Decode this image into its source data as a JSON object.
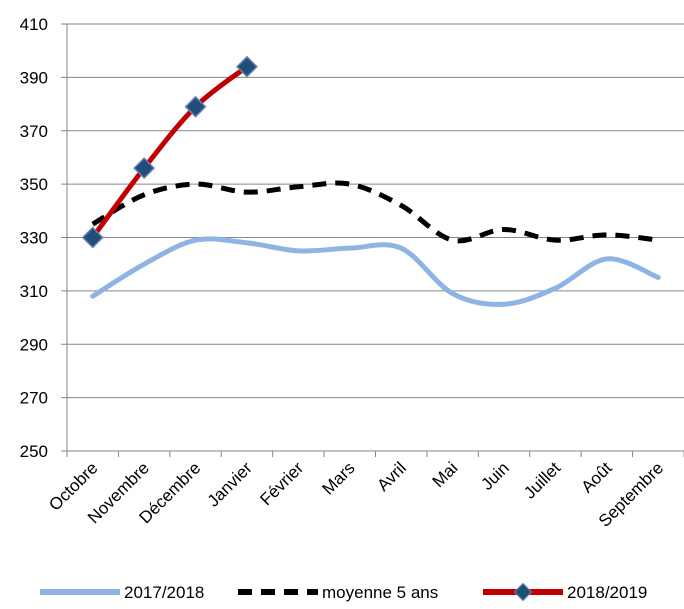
{
  "chart_data": {
    "type": "line",
    "title": "",
    "xlabel": "",
    "ylabel": "",
    "categories": [
      "Octobre",
      "Novembre",
      "Décembre",
      "Janvier",
      "Février",
      "Mars",
      "Avril",
      "Mai",
      "Juin",
      "Juillet",
      "Août",
      "Septembre"
    ],
    "ylim": [
      250,
      410
    ],
    "yticks": [
      250,
      270,
      290,
      310,
      330,
      350,
      370,
      390,
      410
    ],
    "grid": "horizontal",
    "legend_position": "bottom",
    "series": [
      {
        "name": "2017/2018",
        "color": "#8DB4E2",
        "style": "solid-smooth",
        "values": [
          308,
          320,
          329,
          328,
          325,
          326,
          326,
          309,
          305,
          311,
          322,
          315
        ]
      },
      {
        "name": "moyenne 5 ans",
        "color": "#000000",
        "style": "dashed-smooth",
        "values": [
          335,
          346,
          350,
          347,
          349,
          350,
          342,
          329,
          333,
          329,
          331,
          329
        ]
      },
      {
        "name": "2018/2019",
        "color": "#C00000",
        "style": "solid-markers",
        "marker_color": "#1F4E79",
        "values": [
          330,
          356,
          379,
          394,
          null,
          null,
          null,
          null,
          null,
          null,
          null,
          null
        ]
      }
    ]
  }
}
